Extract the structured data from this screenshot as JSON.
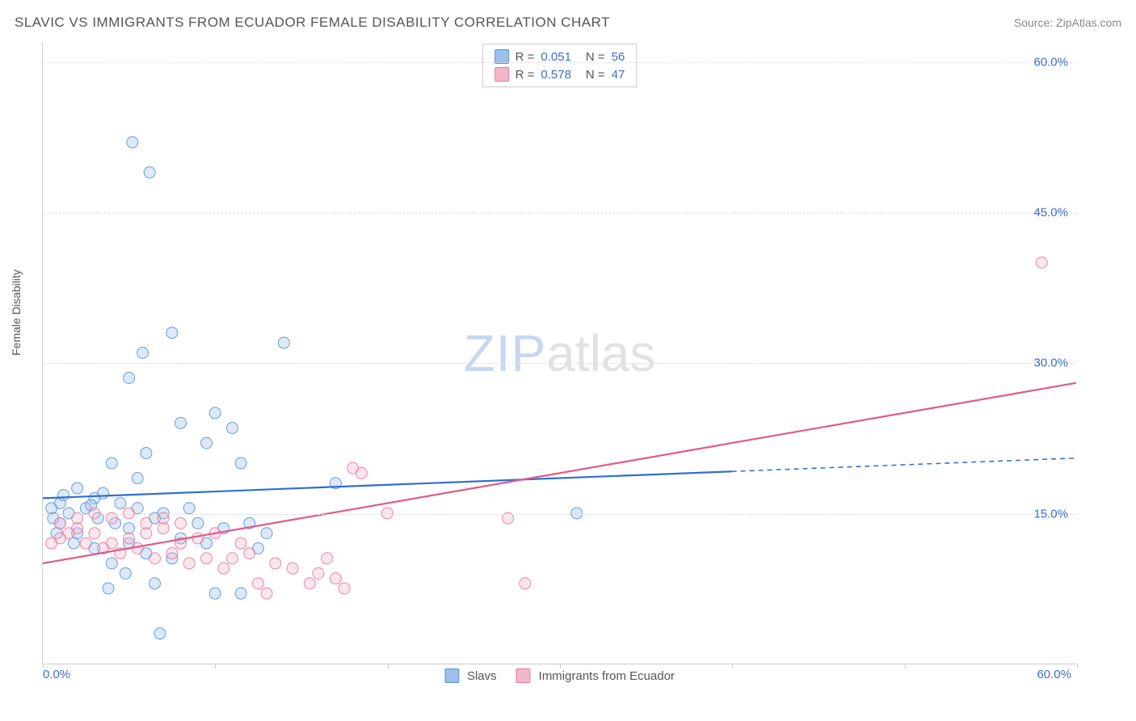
{
  "header": {
    "title": "SLAVIC VS IMMIGRANTS FROM ECUADOR FEMALE DISABILITY CORRELATION CHART",
    "source": "Source: ZipAtlas.com"
  },
  "chart": {
    "type": "scatter",
    "ylabel": "Female Disability",
    "watermark_bold": "ZIP",
    "watermark_light": "atlas",
    "background_color": "#ffffff",
    "axis_color": "#cccccc",
    "grid_color": "#dddddd",
    "text_color": "#555555",
    "value_color": "#3b6fc9",
    "xlim": [
      0,
      60
    ],
    "ylim": [
      0,
      62
    ],
    "x_ticks": [
      0,
      10,
      20,
      30,
      40,
      50,
      60
    ],
    "y_gridlines": [
      15,
      30,
      45,
      60
    ],
    "x_axis_labels": {
      "min": "0.0%",
      "max": "60.0%"
    },
    "y_axis_labels": [
      "15.0%",
      "30.0%",
      "45.0%",
      "60.0%"
    ],
    "point_radius": 7,
    "point_fill_opacity": 0.35,
    "point_stroke_opacity": 0.9,
    "line_width": 2.2,
    "series": [
      {
        "id": "slavs",
        "label": "Slavs",
        "color_fill": "#9cc0ea",
        "color_stroke": "#5a93d6",
        "line_color": "#2f6fd0",
        "r_value": "0.051",
        "n_value": "56",
        "trend": {
          "x1": 0,
          "y1": 16.5,
          "x2": 60,
          "y2": 20.5
        },
        "trend_solid_until_x": 40,
        "points": [
          [
            5.2,
            52.0
          ],
          [
            6.2,
            49.0
          ],
          [
            7.5,
            33.0
          ],
          [
            5.8,
            31.0
          ],
          [
            14.0,
            32.0
          ],
          [
            5.0,
            28.5
          ],
          [
            10.0,
            25.0
          ],
          [
            8.0,
            24.0
          ],
          [
            11.0,
            23.5
          ],
          [
            9.5,
            22.0
          ],
          [
            6.0,
            21.0
          ],
          [
            4.0,
            20.0
          ],
          [
            11.5,
            20.0
          ],
          [
            31.0,
            15.0
          ],
          [
            17.0,
            18.0
          ],
          [
            2.0,
            17.5
          ],
          [
            3.0,
            16.5
          ],
          [
            1.0,
            16.0
          ],
          [
            0.5,
            15.5
          ],
          [
            1.5,
            15.0
          ],
          [
            2.5,
            15.5
          ],
          [
            3.5,
            17.0
          ],
          [
            4.5,
            16.0
          ],
          [
            5.5,
            15.5
          ],
          [
            6.5,
            14.5
          ],
          [
            7.0,
            15.0
          ],
          [
            8.5,
            15.5
          ],
          [
            9.0,
            14.0
          ],
          [
            10.5,
            13.5
          ],
          [
            12.0,
            14.0
          ],
          [
            13.0,
            13.0
          ],
          [
            5.0,
            12.0
          ],
          [
            6.0,
            11.0
          ],
          [
            7.5,
            10.5
          ],
          [
            4.0,
            10.0
          ],
          [
            3.0,
            11.5
          ],
          [
            2.0,
            13.0
          ],
          [
            1.0,
            14.0
          ],
          [
            0.8,
            13.0
          ],
          [
            1.8,
            12.0
          ],
          [
            4.8,
            9.0
          ],
          [
            6.5,
            8.0
          ],
          [
            10.0,
            7.0
          ],
          [
            11.5,
            7.0
          ],
          [
            6.8,
            3.0
          ],
          [
            3.8,
            7.5
          ],
          [
            5.0,
            13.5
          ],
          [
            8.0,
            12.5
          ],
          [
            9.5,
            12.0
          ],
          [
            12.5,
            11.5
          ],
          [
            3.2,
            14.5
          ],
          [
            4.2,
            14.0
          ],
          [
            2.8,
            15.8
          ],
          [
            1.2,
            16.8
          ],
          [
            0.6,
            14.5
          ],
          [
            5.5,
            18.5
          ]
        ]
      },
      {
        "id": "ecuador",
        "label": "Immigrants from Ecuador",
        "color_fill": "#f3b8c8",
        "color_stroke": "#e879a0",
        "line_color": "#e05a8a",
        "r_value": "0.578",
        "n_value": "47",
        "trend": {
          "x1": 0,
          "y1": 10.0,
          "x2": 60,
          "y2": 28.0
        },
        "trend_solid_until_x": 60,
        "points": [
          [
            58.0,
            40.0
          ],
          [
            18.0,
            19.5
          ],
          [
            18.5,
            19.0
          ],
          [
            27.0,
            14.5
          ],
          [
            28.0,
            8.0
          ],
          [
            16.0,
            9.0
          ],
          [
            17.0,
            8.5
          ],
          [
            15.5,
            8.0
          ],
          [
            13.0,
            7.0
          ],
          [
            14.5,
            9.5
          ],
          [
            12.0,
            11.0
          ],
          [
            11.0,
            10.5
          ],
          [
            10.0,
            13.0
          ],
          [
            9.0,
            12.5
          ],
          [
            8.0,
            12.0
          ],
          [
            7.0,
            13.5
          ],
          [
            6.0,
            13.0
          ],
          [
            5.0,
            12.5
          ],
          [
            4.0,
            12.0
          ],
          [
            3.0,
            13.0
          ],
          [
            2.0,
            13.5
          ],
          [
            1.5,
            13.0
          ],
          [
            1.0,
            12.5
          ],
          [
            0.5,
            12.0
          ],
          [
            2.5,
            12.0
          ],
          [
            3.5,
            11.5
          ],
          [
            4.5,
            11.0
          ],
          [
            5.5,
            11.5
          ],
          [
            6.5,
            10.5
          ],
          [
            7.5,
            11.0
          ],
          [
            8.5,
            10.0
          ],
          [
            9.5,
            10.5
          ],
          [
            10.5,
            9.5
          ],
          [
            11.5,
            12.0
          ],
          [
            12.5,
            8.0
          ],
          [
            13.5,
            10.0
          ],
          [
            4.0,
            14.5
          ],
          [
            5.0,
            15.0
          ],
          [
            6.0,
            14.0
          ],
          [
            7.0,
            14.5
          ],
          [
            8.0,
            14.0
          ],
          [
            3.0,
            15.0
          ],
          [
            2.0,
            14.5
          ],
          [
            1.0,
            14.0
          ],
          [
            16.5,
            10.5
          ],
          [
            17.5,
            7.5
          ],
          [
            20.0,
            15.0
          ]
        ]
      }
    ],
    "legend_top_order": [
      "slavs",
      "ecuador"
    ],
    "legend_bottom_order": [
      "slavs",
      "ecuador"
    ]
  }
}
